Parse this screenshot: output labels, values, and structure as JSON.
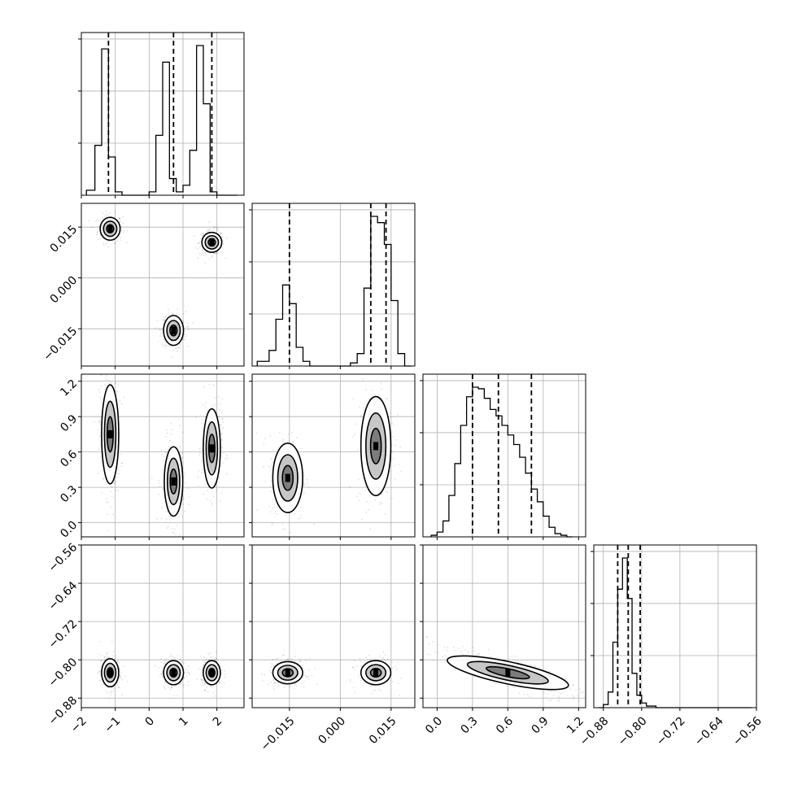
{
  "chart_data": {
    "type": "corner",
    "title": "",
    "grid": true,
    "colors": {
      "line": "#000000",
      "grid": "#b0b0b0",
      "points": "#000000"
    },
    "parameters": [
      {
        "name": "",
        "range": [
          -2.0,
          2.8
        ],
        "ticks": [
          -2,
          -1,
          0,
          1,
          2
        ],
        "tick_labels": [
          "−2",
          "−1",
          "0",
          "1",
          "2"
        ],
        "quantiles": [
          -1.2,
          0.72,
          1.85
        ],
        "modes": [
          {
            "center": -1.15,
            "sigma": 0.12,
            "weight": 0.333
          },
          {
            "center": 0.72,
            "sigma": 0.13,
            "weight": 0.333
          },
          {
            "center": 1.85,
            "sigma": 0.11,
            "weight": 0.333
          }
        ]
      },
      {
        "name": "",
        "range": [
          -0.026,
          0.022
        ],
        "ticks": [
          -0.015,
          0.0,
          0.015
        ],
        "tick_labels": [
          "−0.015",
          "0.000",
          "0.015"
        ],
        "quantiles": [
          -0.015,
          0.009,
          0.0135
        ],
        "modes": [
          {
            "center": -0.0155,
            "sigma": 0.002,
            "weight": 0.333
          },
          {
            "center": 0.0105,
            "sigma": 0.0022,
            "weight": 0.667
          }
        ]
      },
      {
        "name": "",
        "range": [
          -0.12,
          1.26
        ],
        "ticks": [
          0.0,
          0.3,
          0.6,
          0.9,
          1.2
        ],
        "tick_labels": [
          "0.0",
          "0.3",
          "0.6",
          "0.9",
          "1.2"
        ],
        "quantiles": [
          0.3,
          0.52,
          0.8
        ],
        "modes": [
          {
            "center": 0.55,
            "sigma": 0.24,
            "weight": 1.0
          }
        ]
      },
      {
        "name": "",
        "range": [
          -0.9,
          -0.56
        ],
        "ticks": [
          -0.88,
          -0.8,
          -0.72,
          -0.64,
          -0.56
        ],
        "tick_labels": [
          "−0.88",
          "−0.80",
          "−0.72",
          "−0.64",
          "−0.56"
        ],
        "quantiles": [
          -0.85,
          -0.828,
          -0.803
        ],
        "modes": [
          {
            "center": -0.827,
            "sigma": 0.018,
            "weight": 1.0
          }
        ]
      }
    ],
    "histograms": [
      {
        "param": 0,
        "bin_edges": [
          -1.85,
          -1.6,
          -1.4,
          -1.2,
          -1.0,
          -0.8,
          -0.6,
          -0.4,
          -0.2,
          0.0,
          0.2,
          0.4,
          0.6,
          0.8,
          1.0,
          1.2,
          1.4,
          1.6,
          1.8,
          2.0,
          2.2,
          2.4,
          2.6
        ],
        "counts": [
          0.03,
          0.3,
          0.88,
          0.23,
          0.02,
          0.0,
          0.0,
          0.0,
          0.0,
          0.02,
          0.36,
          0.8,
          0.1,
          0.02,
          0.06,
          0.27,
          0.9,
          0.55,
          0.02,
          0.0,
          0.0,
          0.0
        ]
      },
      {
        "param": 1,
        "bin_edges": [
          -0.0245,
          -0.021,
          -0.019,
          -0.017,
          -0.015,
          -0.013,
          -0.011,
          -0.009,
          -0.007,
          -0.005,
          -0.003,
          -0.001,
          0.001,
          0.003,
          0.005,
          0.007,
          0.009,
          0.011,
          0.013,
          0.015,
          0.017,
          0.019,
          0.021
        ],
        "counts": [
          0.03,
          0.1,
          0.3,
          0.52,
          0.4,
          0.12,
          0.03,
          0.0,
          0.0,
          0.0,
          0.0,
          0.0,
          0.0,
          0.02,
          0.08,
          0.5,
          0.96,
          0.92,
          0.78,
          0.42,
          0.08,
          0.0
        ]
      },
      {
        "param": 2,
        "bin_edges": [
          -0.05,
          0.0,
          0.05,
          0.1,
          0.15,
          0.2,
          0.25,
          0.3,
          0.35,
          0.4,
          0.45,
          0.5,
          0.55,
          0.6,
          0.65,
          0.7,
          0.75,
          0.8,
          0.85,
          0.9,
          0.95,
          1.0,
          1.05,
          1.1,
          1.15
        ],
        "counts": [
          0.01,
          0.03,
          0.1,
          0.26,
          0.46,
          0.7,
          0.88,
          0.94,
          0.93,
          0.87,
          0.8,
          0.76,
          0.7,
          0.64,
          0.58,
          0.5,
          0.4,
          0.3,
          0.22,
          0.13,
          0.06,
          0.02,
          0.01,
          0.0
        ]
      },
      {
        "param": 3,
        "bin_edges": [
          -0.89,
          -0.88,
          -0.87,
          -0.86,
          -0.85,
          -0.84,
          -0.83,
          -0.82,
          -0.81,
          -0.8,
          -0.79,
          -0.78,
          -0.77,
          -0.76,
          -0.75,
          -0.74,
          -0.73,
          -0.72,
          -0.71,
          -0.7,
          -0.69,
          -0.68,
          -0.67,
          -0.66,
          -0.65,
          -0.64,
          -0.63,
          -0.62,
          -0.61,
          -0.6,
          -0.59,
          -0.58,
          -0.57
        ],
        "counts": [
          0.0,
          0.02,
          0.1,
          0.42,
          0.76,
          0.96,
          0.7,
          0.22,
          0.08,
          0.03,
          0.01,
          0.01,
          0.0,
          0.0,
          0.0,
          0.0,
          0.0,
          0.0,
          0.0,
          0.0,
          0.0,
          0.0,
          0.0,
          0.0,
          0.0,
          0.0,
          0.0,
          0.0,
          0.0,
          0.0,
          0.0,
          0.0
        ]
      }
    ],
    "contours": [
      {
        "xparam": 0,
        "yparam": 1,
        "blobs": [
          {
            "cx": -1.15,
            "cy": 0.0145,
            "sx": 0.14,
            "sy": 0.0016
          },
          {
            "cx": 1.85,
            "cy": 0.0105,
            "sx": 0.14,
            "sy": 0.0014
          },
          {
            "cx": 0.72,
            "cy": -0.0155,
            "sx": 0.14,
            "sy": 0.0021
          }
        ]
      },
      {
        "xparam": 0,
        "yparam": 2,
        "blobs": [
          {
            "cx": -1.15,
            "cy": 0.75,
            "sx": 0.12,
            "sy": 0.2
          },
          {
            "cx": 0.72,
            "cy": 0.35,
            "sx": 0.13,
            "sy": 0.14
          },
          {
            "cx": 1.85,
            "cy": 0.63,
            "sx": 0.12,
            "sy": 0.16
          }
        ]
      },
      {
        "xparam": 1,
        "yparam": 2,
        "blobs": [
          {
            "cx": -0.0155,
            "cy": 0.38,
            "sx": 0.0021,
            "sy": 0.14
          },
          {
            "cx": 0.0105,
            "cy": 0.65,
            "sx": 0.0021,
            "sy": 0.2
          }
        ]
      },
      {
        "xparam": 0,
        "yparam": 3,
        "blobs": [
          {
            "cx": -1.15,
            "cy": -0.827,
            "sx": 0.12,
            "sy": 0.014
          },
          {
            "cx": 0.72,
            "cy": -0.827,
            "sx": 0.14,
            "sy": 0.012
          },
          {
            "cx": 1.85,
            "cy": -0.827,
            "sx": 0.12,
            "sy": 0.012
          }
        ]
      },
      {
        "xparam": 1,
        "yparam": 3,
        "blobs": [
          {
            "cx": -0.0155,
            "cy": -0.827,
            "sx": 0.0021,
            "sy": 0.011
          },
          {
            "cx": 0.0105,
            "cy": -0.827,
            "sx": 0.0021,
            "sy": 0.012
          }
        ]
      },
      {
        "xparam": 2,
        "yparam": 3,
        "blobs": [
          {
            "cx": 0.6,
            "cy": -0.827,
            "sx": 0.25,
            "sy": 0.011,
            "tilt": -0.02
          }
        ]
      }
    ]
  }
}
